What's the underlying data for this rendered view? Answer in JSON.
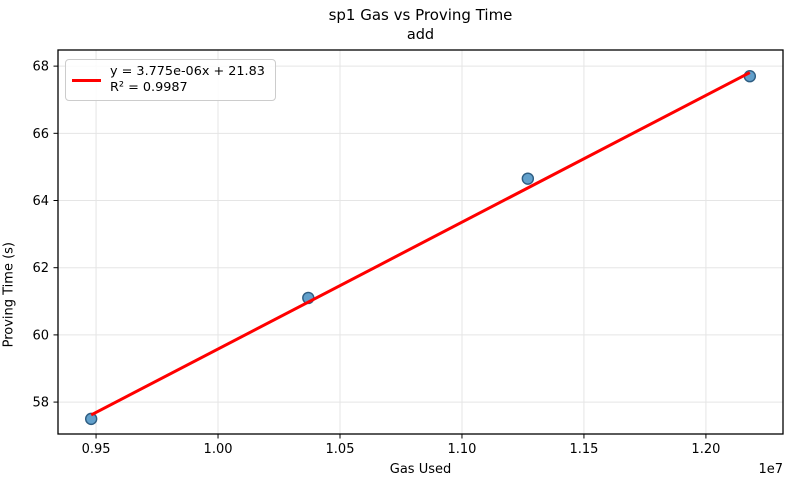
{
  "figure": {
    "title": "sp1 Gas vs Proving Time",
    "subtitle": "add",
    "xlabel": "Gas Used",
    "ylabel": "Proving Time (s)",
    "x_offset_label": "1e7"
  },
  "legend": {
    "equation": "y = 3.775e-06x + 21.83",
    "r_squared": "R² = 0.9987"
  },
  "chart_data": {
    "type": "scatter",
    "title": "sp1 Gas vs Proving Time",
    "subtitle": "add",
    "xlabel": "Gas Used",
    "ylabel": "Proving Time (s)",
    "points": {
      "x": [
        9480000,
        10370000,
        11270000,
        12180000
      ],
      "y": [
        57.5,
        61.1,
        64.65,
        67.7
      ]
    },
    "fit_line": {
      "slope": 3.775e-06,
      "intercept": 21.83,
      "r_squared": 0.9987,
      "label": "y = 3.775e-06x + 21.83"
    },
    "xlim": [
      9344000,
      12316000
    ],
    "ylim": [
      57.05,
      68.48
    ],
    "xticks": [
      9500000,
      10000000,
      10500000,
      11000000,
      11500000,
      12000000
    ],
    "xtick_labels": [
      "0.95",
      "1.00",
      "1.05",
      "1.10",
      "1.15",
      "1.20"
    ],
    "x_multiplier_label": "1e7",
    "yticks": [
      58,
      60,
      62,
      64,
      66,
      68
    ],
    "ytick_labels": [
      "58",
      "60",
      "62",
      "64",
      "66",
      "68"
    ],
    "grid": true,
    "legend_position": "upper left",
    "colors": {
      "point_fill": "#62a0cb",
      "point_edge": "#2e5d82",
      "fit_line": "#ff0000",
      "grid": "#e5e5e5",
      "spine": "#000000"
    }
  }
}
